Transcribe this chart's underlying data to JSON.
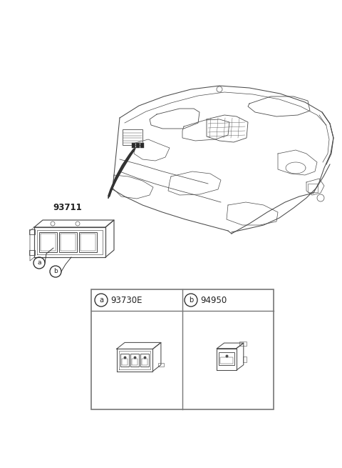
{
  "bg_color": "#ffffff",
  "part_number_label": "93711",
  "circle_a_label": "a",
  "circle_b_label": "b",
  "table_label_a": "93730E",
  "table_label_b": "94950",
  "line_color": "#4a4a4a",
  "text_color": "#222222",
  "table_border_color": "#777777",
  "part_label_color": "#222222",
  "arrow_color": "#333333",
  "dash_color": "#555555"
}
